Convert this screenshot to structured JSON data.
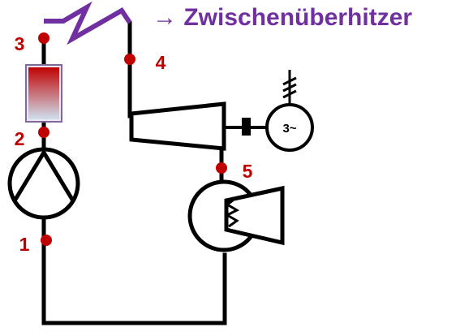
{
  "heading": {
    "arrow": "→",
    "text": "Zwischenüberhitzer"
  },
  "state_points": [
    "1",
    "2",
    "3",
    "4",
    "5"
  ],
  "generator_label": "3~",
  "colors": {
    "line": "#000000",
    "accent": "#7030a0",
    "point": "#c00000",
    "label": "#c00000",
    "heater_top": "#c00000",
    "heater_bottom": "#cfe3f2",
    "heater_frame": "#7f6a9e",
    "heater_fill": "#efe6f4"
  }
}
